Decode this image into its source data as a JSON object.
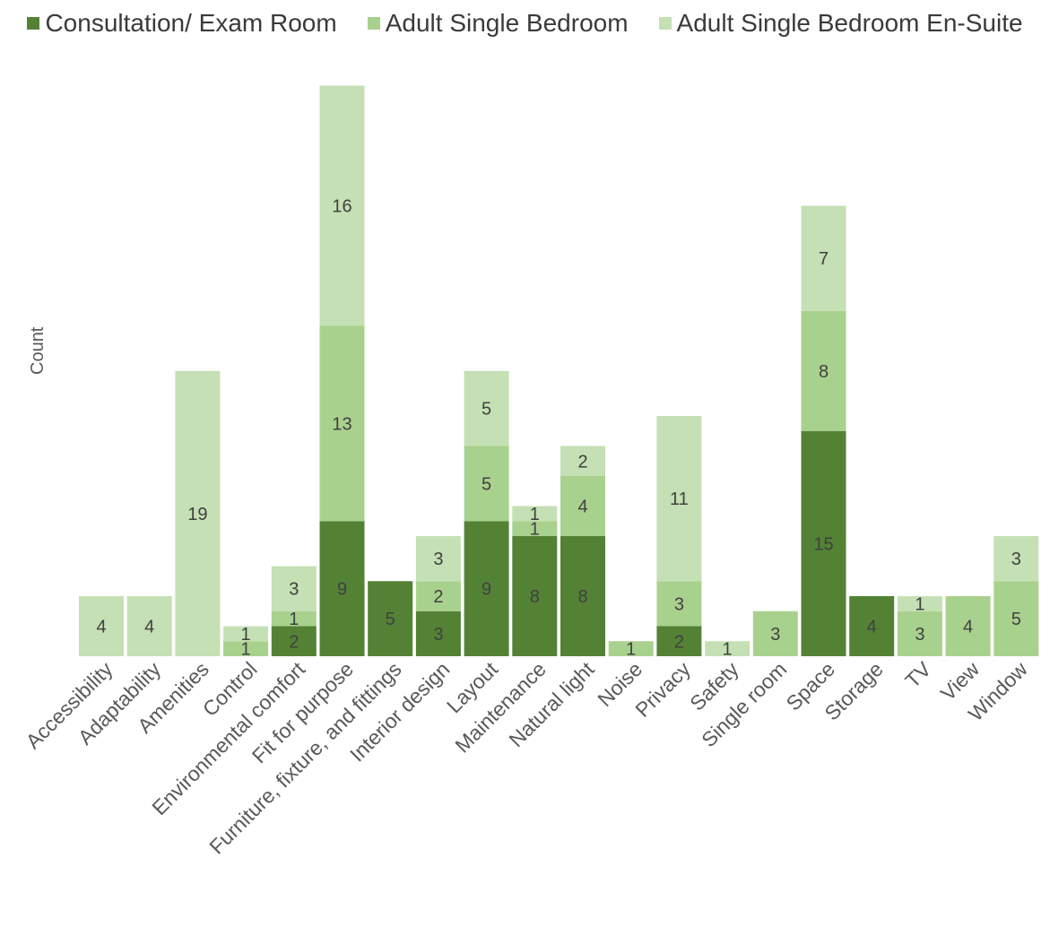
{
  "chart_data": {
    "type": "bar",
    "stacked": true,
    "title": "",
    "xlabel": "",
    "ylabel": "Count",
    "ylim": [
      0,
      38
    ],
    "grid": false,
    "legend_position": "top",
    "categories": [
      "Accessibility",
      "Adaptability",
      "Amenities",
      "Control",
      "Environmental comfort",
      "Fit for purpose",
      "Furniture, fixture, and fittings",
      "Interior design",
      "Layout",
      "Maintenance",
      "Natural light",
      "Noise",
      "Privacy",
      "Safety",
      "Single room",
      "Space",
      "Storage",
      "TV",
      "View",
      "Window"
    ],
    "series": [
      {
        "name": "Consultation/ Exam Room",
        "color": "#548235",
        "values": [
          0,
          0,
          0,
          0,
          2,
          9,
          5,
          3,
          9,
          8,
          8,
          0,
          2,
          0,
          0,
          15,
          4,
          0,
          0,
          0
        ]
      },
      {
        "name": "Adult Single Bedroom",
        "color": "#a9d18e",
        "values": [
          0,
          0,
          0,
          1,
          1,
          13,
          0,
          2,
          5,
          1,
          4,
          1,
          3,
          0,
          3,
          8,
          0,
          3,
          4,
          5
        ]
      },
      {
        "name": "Adult Single Bedroom En-Suite",
        "color": "#c5e0b4",
        "values": [
          4,
          4,
          19,
          1,
          3,
          16,
          0,
          3,
          5,
          1,
          2,
          0,
          11,
          1,
          0,
          7,
          0,
          1,
          0,
          3
        ]
      }
    ]
  }
}
